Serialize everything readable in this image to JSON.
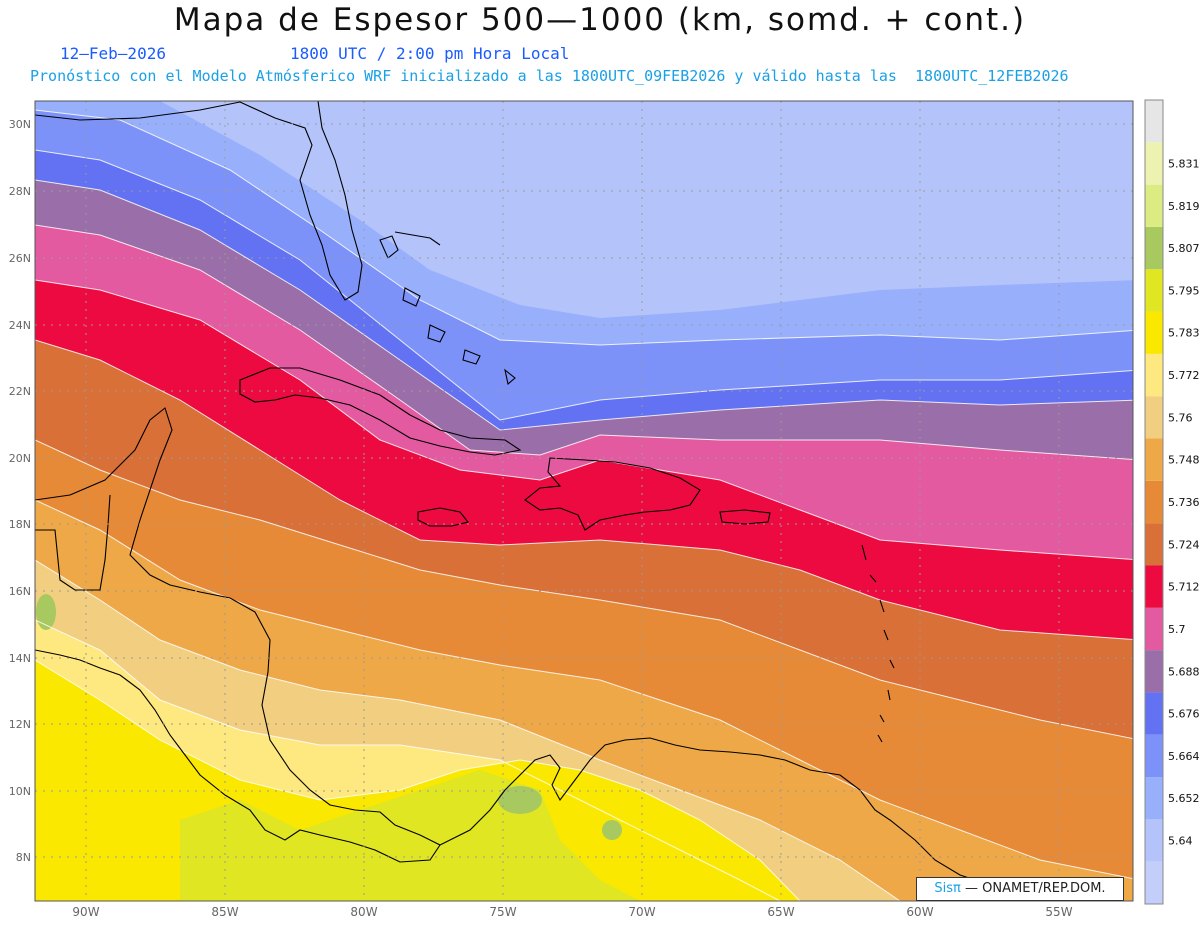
{
  "header": {
    "title": "Mapa de Espesor 500—1000 (km, somd. + cont.)",
    "date": "12—Feb—2026",
    "time": "1800 UTC / 2:00 pm Hora Local",
    "subtitle": "Pronóstico con el Modelo Atmósferico WRF inicializado a las 1800UTC_09FEB2026 y válido hasta las  1800UTC_12FEB2026"
  },
  "map": {
    "lon_labels": [
      "90W",
      "85W",
      "80W",
      "75W",
      "70W",
      "65W",
      "60W",
      "55W"
    ],
    "lat_labels": [
      "30N",
      "28N",
      "26N",
      "24N",
      "22N",
      "20N",
      "18N",
      "16N",
      "14N",
      "12N",
      "10N",
      "8N"
    ],
    "grid": "dotted"
  },
  "colorbar": {
    "levels": [
      "5.64",
      "5.652",
      "5.664",
      "5.676",
      "5.688",
      "5.7",
      "5.712",
      "5.724",
      "5.736",
      "5.748",
      "5.76",
      "5.772",
      "5.783",
      "5.795",
      "5.807",
      "5.819",
      "5.831"
    ],
    "colors": [
      "#c4cefa",
      "#b4c4fb",
      "#98b0fb",
      "#7c92f8",
      "#6272f2",
      "#9a6ea8",
      "#e45aa0",
      "#ec0a40",
      "#d87038",
      "#e68a38",
      "#eea848",
      "#f2ce80",
      "#fee880",
      "#fae800",
      "#e0e622",
      "#a8c860",
      "#dcec82",
      "#eef2b0",
      "#e6e6e6"
    ]
  },
  "credit": {
    "brand": "Sisπ",
    "org": "— ONAMET/REP.DOM."
  }
}
